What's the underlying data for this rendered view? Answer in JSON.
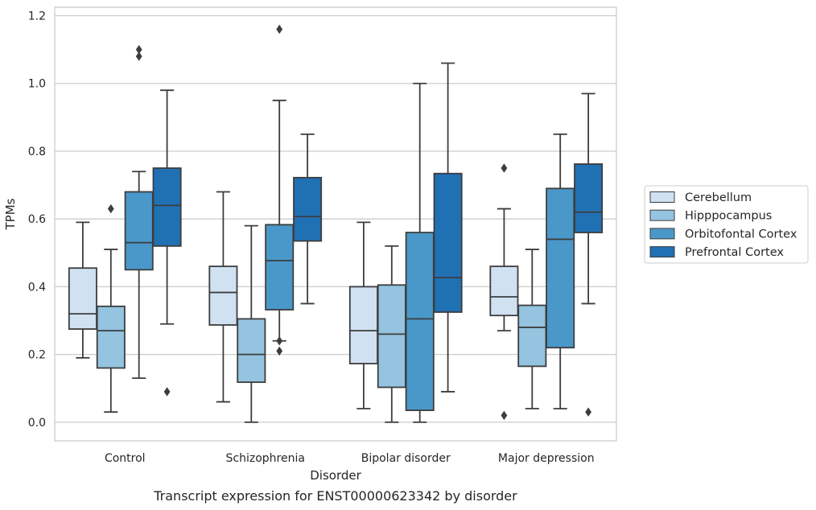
{
  "chart_data": {
    "type": "box",
    "caption": "Transcript expression for ENST00000623342 by disorder",
    "xlabel": "Disorder",
    "ylabel": "TPMs",
    "ylim": [
      -0.055,
      1.225
    ],
    "yticks": [
      0.0,
      0.2,
      0.4,
      0.6,
      0.8,
      1.0,
      1.2
    ],
    "ytick_labels": [
      "0.0",
      "0.2",
      "0.4",
      "0.6",
      "0.8",
      "1.0",
      "1.2"
    ],
    "grid": "horizontal",
    "legend_position": "right",
    "categories": [
      "Control",
      "Schizophrenia",
      "Bipolar disorder",
      "Major depression"
    ],
    "series": [
      {
        "name": "Cerebellum",
        "color": "#d0e1f2",
        "boxes": [
          {
            "whislo": 0.19,
            "q1": 0.275,
            "med": 0.32,
            "q3": 0.455,
            "whishi": 0.59,
            "fliers": []
          },
          {
            "whislo": 0.06,
            "q1": 0.287,
            "med": 0.383,
            "q3": 0.46,
            "whishi": 0.68,
            "fliers": []
          },
          {
            "whislo": 0.04,
            "q1": 0.173,
            "med": 0.27,
            "q3": 0.4,
            "whishi": 0.59,
            "fliers": []
          },
          {
            "whislo": 0.27,
            "q1": 0.315,
            "med": 0.37,
            "q3": 0.46,
            "whishi": 0.63,
            "fliers": [
              0.75,
              0.02
            ]
          }
        ]
      },
      {
        "name": "Hipppocampus",
        "color": "#94c4df",
        "boxes": [
          {
            "whislo": 0.03,
            "q1": 0.16,
            "med": 0.27,
            "q3": 0.342,
            "whishi": 0.51,
            "fliers": [
              0.63
            ]
          },
          {
            "whislo": 0.0,
            "q1": 0.118,
            "med": 0.2,
            "q3": 0.305,
            "whishi": 0.58,
            "fliers": []
          },
          {
            "whislo": 0.0,
            "q1": 0.103,
            "med": 0.26,
            "q3": 0.405,
            "whishi": 0.52,
            "fliers": []
          },
          {
            "whislo": 0.04,
            "q1": 0.165,
            "med": 0.28,
            "q3": 0.345,
            "whishi": 0.51,
            "fliers": []
          }
        ]
      },
      {
        "name": "Orbitofontal Cortex",
        "color": "#4a98c9",
        "boxes": [
          {
            "whislo": 0.13,
            "q1": 0.45,
            "med": 0.53,
            "q3": 0.68,
            "whishi": 0.74,
            "fliers": [
              1.08,
              1.1
            ]
          },
          {
            "whislo": 0.24,
            "q1": 0.332,
            "med": 0.477,
            "q3": 0.583,
            "whishi": 0.95,
            "fliers": [
              0.24,
              0.21,
              1.16
            ]
          },
          {
            "whislo": 0.0,
            "q1": 0.035,
            "med": 0.305,
            "q3": 0.56,
            "whishi": 1.0,
            "fliers": []
          },
          {
            "whislo": 0.04,
            "q1": 0.22,
            "med": 0.54,
            "q3": 0.69,
            "whishi": 0.85,
            "fliers": []
          }
        ]
      },
      {
        "name": "Prefrontal Cortex",
        "color": "#2070b4",
        "boxes": [
          {
            "whislo": 0.29,
            "q1": 0.52,
            "med": 0.64,
            "q3": 0.75,
            "whishi": 0.98,
            "fliers": [
              0.09
            ]
          },
          {
            "whislo": 0.35,
            "q1": 0.535,
            "med": 0.607,
            "q3": 0.722,
            "whishi": 0.85,
            "fliers": []
          },
          {
            "whislo": 0.09,
            "q1": 0.325,
            "med": 0.427,
            "q3": 0.734,
            "whishi": 1.06,
            "fliers": []
          },
          {
            "whislo": 0.35,
            "q1": 0.56,
            "med": 0.62,
            "q3": 0.762,
            "whishi": 0.97,
            "fliers": [
              0.03
            ]
          }
        ]
      }
    ]
  }
}
